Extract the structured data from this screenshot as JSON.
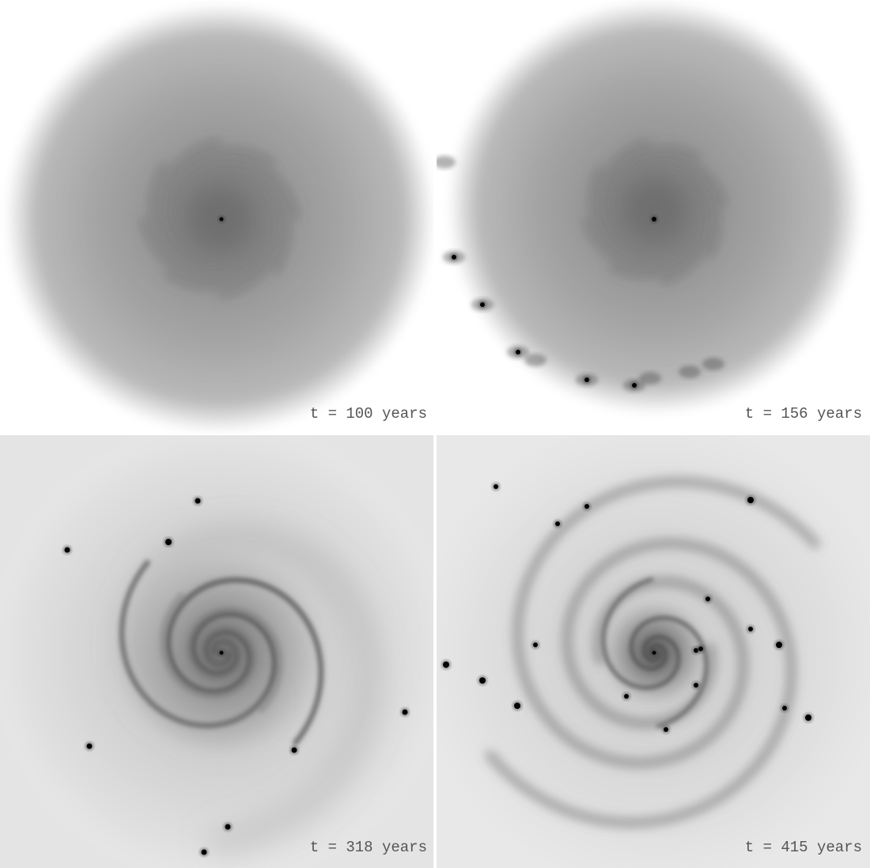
{
  "panels": [
    {
      "label": "t = 100 years"
    },
    {
      "label": "t = 156 years"
    },
    {
      "label": "t = 318 years"
    },
    {
      "label": "t = 415 years"
    }
  ]
}
